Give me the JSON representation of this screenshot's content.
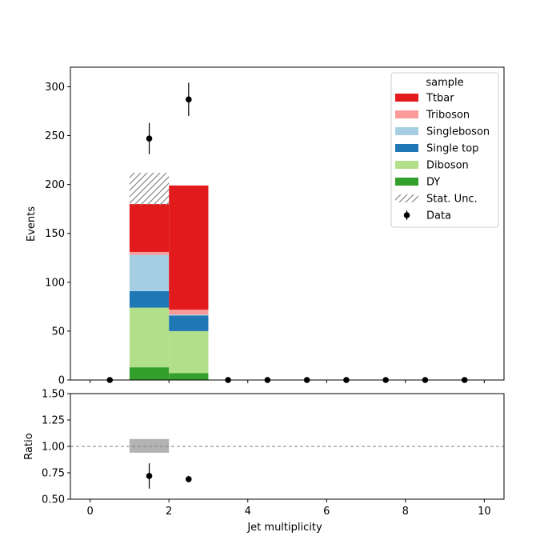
{
  "chart_data": [
    {
      "type": "bar",
      "stacked": true,
      "xlabel": "",
      "ylabel": "Events",
      "xlim": [
        -0.5,
        10.5
      ],
      "ylim": [
        0,
        320
      ],
      "yticks": [
        0,
        50,
        100,
        150,
        200,
        250,
        300
      ],
      "xticks": [
        0,
        2,
        4,
        6,
        8,
        10
      ],
      "bins": [
        [
          1,
          2
        ],
        [
          2,
          3
        ]
      ],
      "series": [
        {
          "name": "DY",
          "color": "#33a02c",
          "values": [
            13,
            7
          ]
        },
        {
          "name": "Diboson",
          "color": "#b2df8a",
          "values": [
            61,
            43
          ]
        },
        {
          "name": "Single top",
          "color": "#1f78b4",
          "values": [
            17,
            16
          ]
        },
        {
          "name": "Singleboson",
          "color": "#a6cee3",
          "values": [
            37,
            1
          ]
        },
        {
          "name": "Triboson",
          "color": "#fb9a99",
          "values": [
            3,
            5
          ]
        },
        {
          "name": "Ttbar",
          "color": "#e31a1c",
          "values": [
            49,
            127
          ]
        }
      ],
      "stat_unc": {
        "name": "Stat. Unc.",
        "bins": [
          [
            1,
            2
          ]
        ],
        "low": [
          179
        ],
        "high": [
          212
        ]
      },
      "data_points": {
        "name": "Data",
        "x": [
          0.5,
          1.5,
          2.5,
          3.5,
          4.5,
          5.5,
          6.5,
          7.5,
          8.5,
          9.5
        ],
        "y": [
          0,
          247,
          287,
          0,
          0,
          0,
          0,
          0,
          0,
          0
        ],
        "yerr": [
          0,
          16,
          17,
          0,
          0,
          0,
          0,
          0,
          0,
          0
        ]
      },
      "legend": {
        "title": "sample",
        "placement": "top-right",
        "entries": [
          "Ttbar",
          "Triboson",
          "Singleboson",
          "Single top",
          "Diboson",
          "DY",
          "Stat. Unc.",
          "Data"
        ]
      }
    },
    {
      "type": "scatter",
      "xlabel": "Jet multiplicity",
      "ylabel": "Ratio",
      "xlim": [
        -0.5,
        10.5
      ],
      "ylim": [
        0.5,
        1.5
      ],
      "yticks": [
        "0.50",
        "0.75",
        "1.00",
        "1.25",
        "1.50"
      ],
      "xticks": [
        0,
        2,
        4,
        6,
        8,
        10
      ],
      "reference_line": 1.0,
      "unc_band": {
        "bins": [
          [
            1,
            2
          ]
        ],
        "low": [
          0.94
        ],
        "high": [
          1.07
        ]
      },
      "points": {
        "x": [
          1.5,
          2.5
        ],
        "y": [
          0.72,
          0.69
        ],
        "yerr": [
          0.12,
          0.03
        ]
      }
    }
  ]
}
